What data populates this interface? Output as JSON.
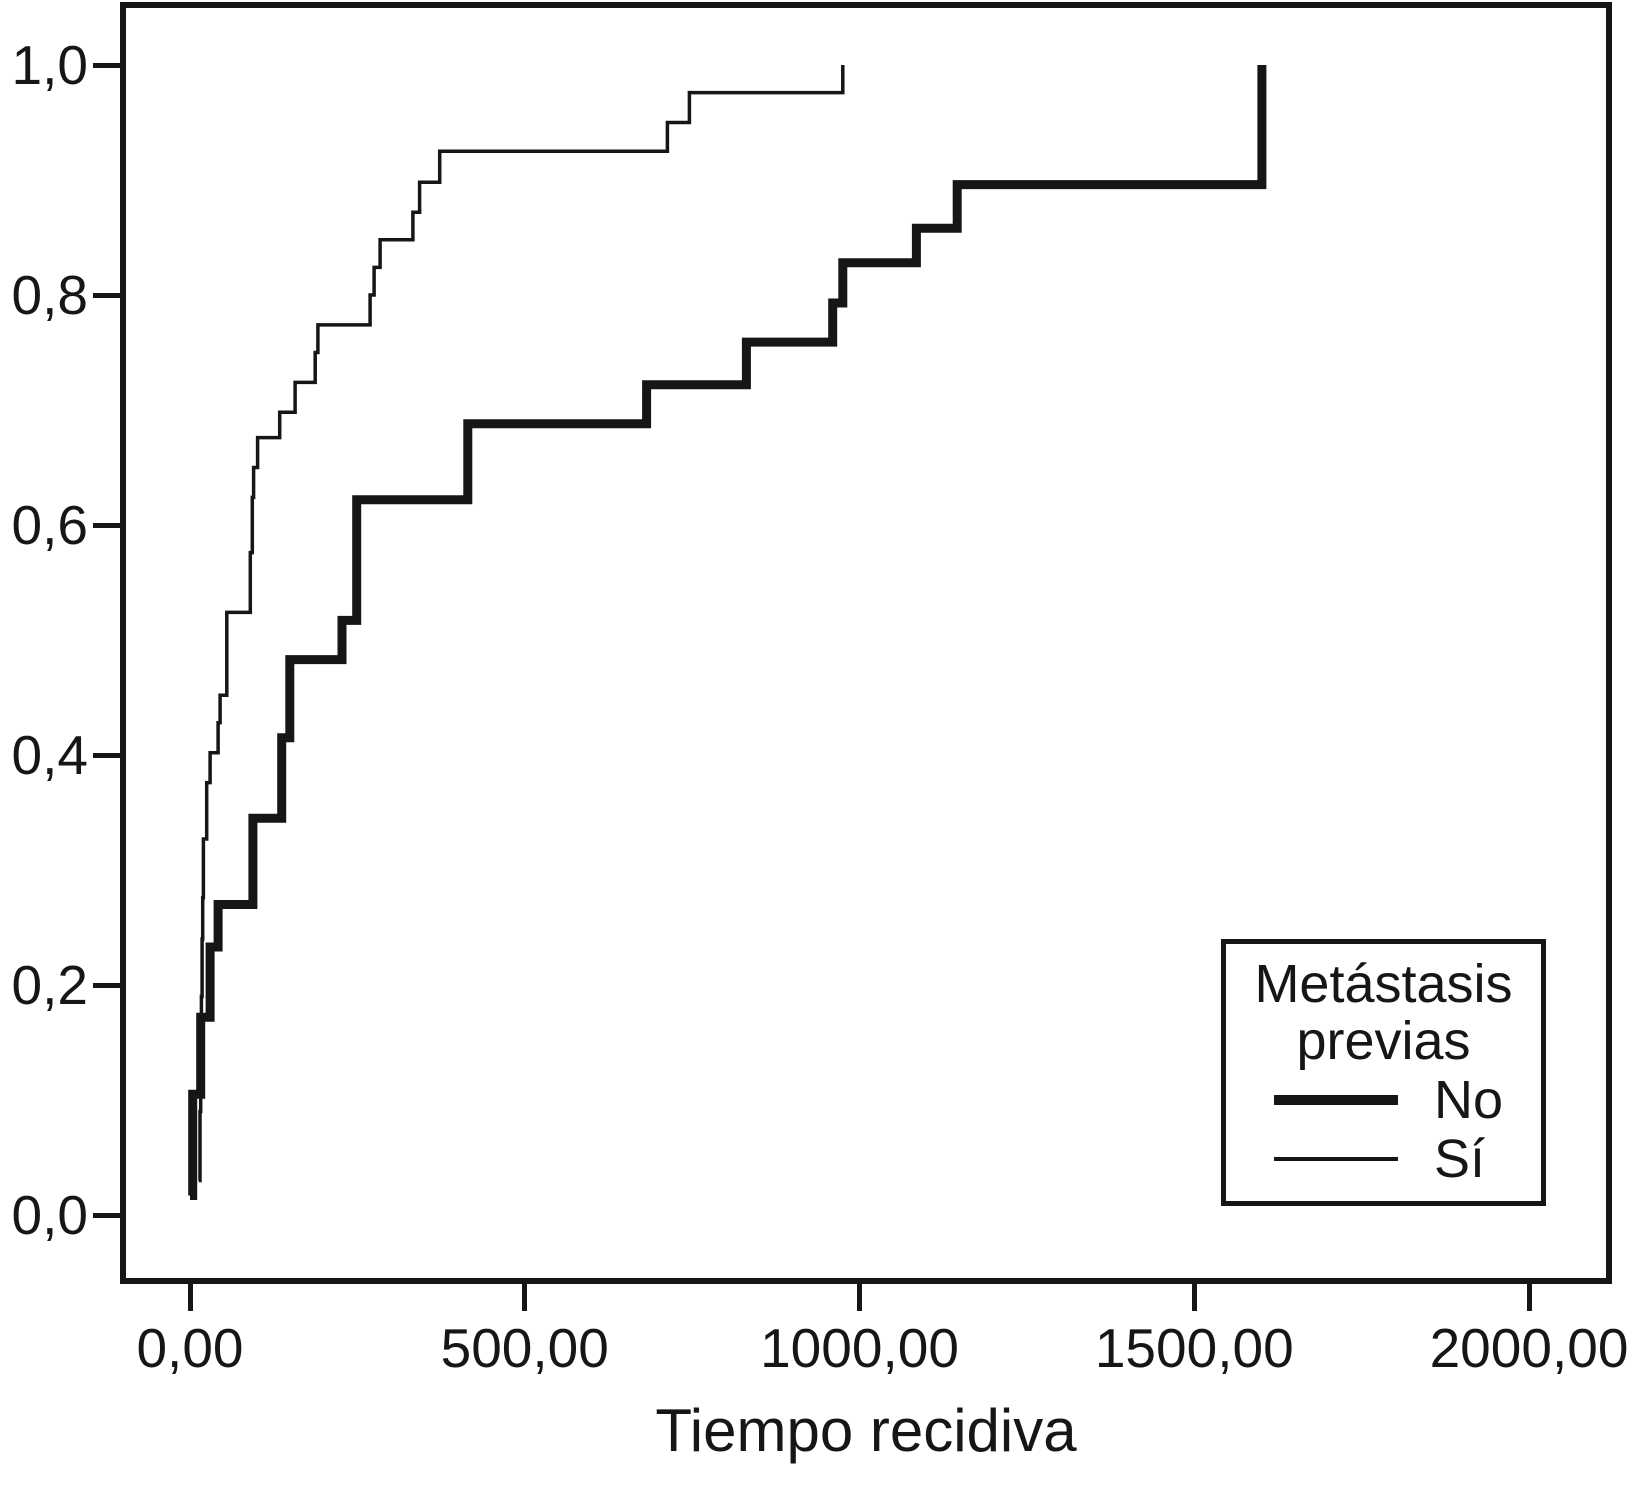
{
  "chart_data": {
    "type": "line",
    "subtype": "step-cumulative-incidence",
    "title": "",
    "xlabel": "Tiempo recidiva",
    "ylabel": "",
    "grid": false,
    "xlim": [
      -100,
      2120
    ],
    "ylim": [
      -0.057,
      1.052
    ],
    "x_ticks": {
      "values": [
        0,
        500,
        1000,
        1500,
        2000
      ],
      "labels": [
        "0,00",
        "500,00",
        "1000,00",
        "1500,00",
        "2000,00"
      ]
    },
    "y_ticks": {
      "values": [
        0.0,
        0.2,
        0.4,
        0.6,
        0.8,
        1.0
      ],
      "labels": [
        "0,0",
        "0,2",
        "0,4",
        "0,6",
        "0,8",
        "1,0"
      ]
    },
    "legend": {
      "position": "lower-right",
      "title_lines": [
        "Metástasis",
        "previas"
      ],
      "entries": [
        {
          "label": "No",
          "line_style": "thick"
        },
        {
          "label": "Sí",
          "line_style": "thin"
        }
      ]
    },
    "colors": {
      "line": "#161616",
      "background": "#ffffff"
    },
    "series": [
      {
        "name": "No",
        "line_style": "thick",
        "stroke_width": 9,
        "steps": [
          [
            0,
            0.017
          ],
          [
            4,
            0.105
          ],
          [
            16,
            0.172
          ],
          [
            30,
            0.233
          ],
          [
            42,
            0.27
          ],
          [
            94,
            0.345
          ],
          [
            137,
            0.415
          ],
          [
            149,
            0.483
          ],
          [
            227,
            0.517
          ],
          [
            249,
            0.622
          ],
          [
            415,
            0.688
          ],
          [
            682,
            0.722
          ],
          [
            831,
            0.759
          ],
          [
            960,
            0.793
          ],
          [
            975,
            0.828
          ],
          [
            1085,
            0.858
          ],
          [
            1146,
            0.896
          ],
          [
            1601,
            1.0
          ]
        ]
      },
      {
        "name": "Sí",
        "line_style": "thin",
        "stroke_width": 3.5,
        "steps": [
          [
            13,
            0.03
          ],
          [
            15,
            0.09
          ],
          [
            16,
            0.14
          ],
          [
            17,
            0.19
          ],
          [
            18,
            0.24
          ],
          [
            19,
            0.276
          ],
          [
            20,
            0.327
          ],
          [
            25,
            0.376
          ],
          [
            30,
            0.402
          ],
          [
            42,
            0.428
          ],
          [
            45,
            0.452
          ],
          [
            55,
            0.524
          ],
          [
            90,
            0.576
          ],
          [
            93,
            0.624
          ],
          [
            95,
            0.65
          ],
          [
            101,
            0.676
          ],
          [
            134,
            0.698
          ],
          [
            157,
            0.724
          ],
          [
            187,
            0.75
          ],
          [
            191,
            0.774
          ],
          [
            269,
            0.8
          ],
          [
            275,
            0.824
          ],
          [
            284,
            0.848
          ],
          [
            333,
            0.872
          ],
          [
            343,
            0.898
          ],
          [
            373,
            0.925
          ],
          [
            713,
            0.95
          ],
          [
            746,
            0.976
          ],
          [
            975,
            1.0
          ]
        ]
      }
    ]
  }
}
